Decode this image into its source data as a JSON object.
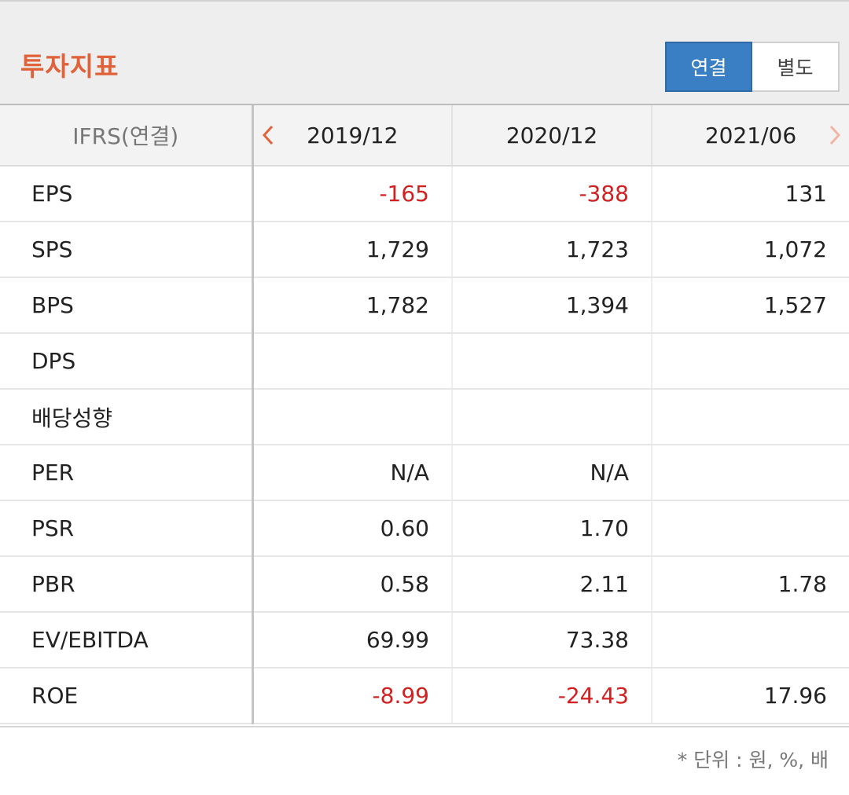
{
  "header": {
    "title": "투자지표",
    "toggle": {
      "consolidated": "연결",
      "separate": "별도",
      "active": "consolidated"
    }
  },
  "colors": {
    "accent": "#e0623a",
    "active_btn": "#3a7fc4",
    "negative": "#d22020"
  },
  "table": {
    "label_header": "IFRS(연결)",
    "periods": [
      "2019/12",
      "2020/12",
      "2021/06"
    ],
    "icons": {
      "prev": "chevron-left-icon",
      "next": "chevron-right-icon"
    },
    "rows": [
      {
        "name": "EPS",
        "values": [
          "-165",
          "-388",
          "131"
        ]
      },
      {
        "name": "SPS",
        "values": [
          "1,729",
          "1,723",
          "1,072"
        ]
      },
      {
        "name": "BPS",
        "values": [
          "1,782",
          "1,394",
          "1,527"
        ]
      },
      {
        "name": "DPS",
        "values": [
          "",
          "",
          ""
        ]
      },
      {
        "name": "배당성향",
        "values": [
          "",
          "",
          ""
        ]
      },
      {
        "name": "PER",
        "values": [
          "N/A",
          "N/A",
          ""
        ]
      },
      {
        "name": "PSR",
        "values": [
          "0.60",
          "1.70",
          ""
        ]
      },
      {
        "name": "PBR",
        "values": [
          "0.58",
          "2.11",
          "1.78"
        ]
      },
      {
        "name": "EV/EBITDA",
        "values": [
          "69.99",
          "73.38",
          ""
        ]
      },
      {
        "name": "ROE",
        "values": [
          "-8.99",
          "-24.43",
          "17.96"
        ]
      }
    ]
  },
  "footer": {
    "unit_note": "* 단위 : 원, %, 배"
  }
}
